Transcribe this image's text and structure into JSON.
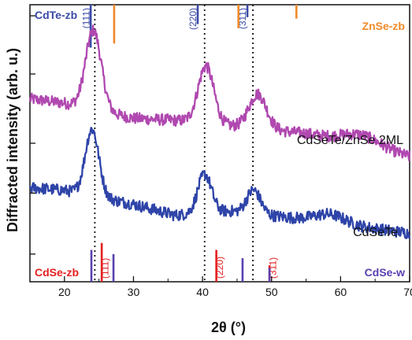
{
  "chart_data": {
    "type": "line",
    "xlabel": "2θ (°)",
    "ylabel": "Diffracted intensity (arb. u.)",
    "xlim": [
      15,
      70
    ],
    "ylim": [
      0,
      10
    ],
    "xticks": [
      20,
      30,
      40,
      50,
      60,
      70
    ],
    "yticks_labeled": false,
    "grid": false,
    "colors": {
      "series_top": "#b048b0",
      "series_bottom": "#2e44a8",
      "cdte_zb": "#3a4aa8",
      "znse_zb": "#ef8a2a",
      "cdse_zb": "#e52020",
      "cdse_w": "#5a3fb0"
    },
    "series": [
      {
        "name": "CdSeTe/ZnSe 2ML",
        "peaks": [
          {
            "x": 24.2,
            "height": 2.85,
            "width": 1.6
          },
          {
            "x": 40.5,
            "height": 2.05,
            "width": 1.6
          },
          {
            "x": 48.0,
            "height": 1.25,
            "width": 1.8
          },
          {
            "x": 63.0,
            "height": 0.4,
            "width": 4.0
          }
        ],
        "baseline": [
          {
            "x": 15,
            "y": 6.6
          },
          {
            "x": 20,
            "y": 6.45
          },
          {
            "x": 30,
            "y": 5.9
          },
          {
            "x": 38,
            "y": 5.8
          },
          {
            "x": 45,
            "y": 5.6
          },
          {
            "x": 55,
            "y": 5.35
          },
          {
            "x": 70,
            "y": 4.5
          }
        ]
      },
      {
        "name": "CdSeTe",
        "peaks": [
          {
            "x": 24.0,
            "height": 2.4,
            "width": 1.4
          },
          {
            "x": 40.3,
            "height": 1.4,
            "width": 1.4
          },
          {
            "x": 47.4,
            "height": 0.85,
            "width": 1.4
          },
          {
            "x": 58.5,
            "height": 0.3,
            "width": 3.0
          }
        ],
        "baseline": [
          {
            "x": 15,
            "y": 3.4
          },
          {
            "x": 20,
            "y": 3.3
          },
          {
            "x": 30,
            "y": 2.8
          },
          {
            "x": 36,
            "y": 2.4
          },
          {
            "x": 44,
            "y": 2.55
          },
          {
            "x": 55,
            "y": 2.25
          },
          {
            "x": 70,
            "y": 1.75
          }
        ]
      }
    ],
    "reference_lines": [
      {
        "x": 24.4
      },
      {
        "x": 40.3
      },
      {
        "x": 47.3
      }
    ],
    "reference_patterns": [
      {
        "name": "CdTe-zb",
        "colorKey": "cdte_zb",
        "position": "top",
        "lines": [
          {
            "x": 23.8,
            "len": 1.55,
            "hkl": "(111)"
          },
          {
            "x": 39.3,
            "len": 0.7,
            "hkl": "(220)"
          },
          {
            "x": 46.5,
            "len": 0.45,
            "hkl": "(311)"
          }
        ]
      },
      {
        "name": "ZnSe-zb",
        "colorKey": "znse_zb",
        "position": "top",
        "lines": [
          {
            "x": 27.2,
            "len": 1.4
          },
          {
            "x": 45.2,
            "len": 0.85
          },
          {
            "x": 53.6,
            "len": 0.5
          }
        ]
      },
      {
        "name": "CdSe-zb",
        "colorKey": "cdse_zb",
        "position": "bottom",
        "lines": [
          {
            "x": 25.4,
            "len": 1.4,
            "hkl": "(111)"
          },
          {
            "x": 42.0,
            "len": 1.15,
            "hkl": "(220)"
          },
          {
            "x": 49.7,
            "len": 0.6,
            "hkl": "(311)"
          }
        ]
      },
      {
        "name": "CdSe-w",
        "colorKey": "cdse_w",
        "position": "bottom",
        "lines": [
          {
            "x": 23.9,
            "len": 1.15
          },
          {
            "x": 27.1,
            "len": 1.0
          },
          {
            "x": 45.8,
            "len": 0.85
          },
          {
            "x": 49.7,
            "len": 0.5
          }
        ]
      }
    ],
    "legend": "curve labels beside each trace"
  }
}
